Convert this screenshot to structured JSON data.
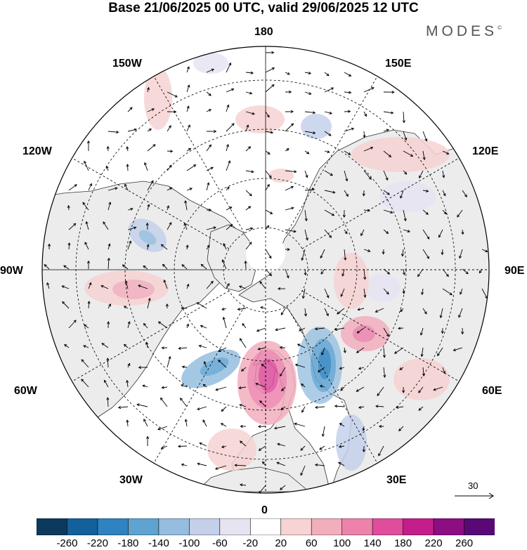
{
  "header": {
    "title": "Base 21/06/2025 00 UTC, valid 29/06/2025 12 UTC",
    "brand": "MODES",
    "brand_mark": "©"
  },
  "map": {
    "projection": "north-polar-stereographic",
    "longitude_labels": {
      "top": "180",
      "bottom": "0",
      "left": "90W",
      "right": "90E",
      "upper_left_1": "150W",
      "upper_left_2": "120W",
      "lower_left_1": "60W",
      "lower_left_2": "30W",
      "upper_right_1": "150E",
      "upper_right_2": "120E",
      "lower_right_1": "60E",
      "lower_right_2": "30E"
    },
    "reference_vector": {
      "value": "30"
    },
    "colors": {
      "land": "#ececec",
      "coast": "#333333",
      "grid": "#000000"
    }
  },
  "colorbar": {
    "ticks": [
      "-260",
      "-220",
      "-180",
      "-140",
      "-100",
      "-60",
      "-20",
      "20",
      "60",
      "100",
      "140",
      "180",
      "220",
      "260"
    ],
    "colors": [
      "#0b3a5e",
      "#14609a",
      "#2e83c0",
      "#5fa3d2",
      "#94bddf",
      "#c4d0ea",
      "#e7e4f2",
      "#ffffff",
      "#f7d3d3",
      "#f2aebd",
      "#ed82ad",
      "#e04d9d",
      "#c41d8c",
      "#8d0d82",
      "#5a0876"
    ]
  }
}
